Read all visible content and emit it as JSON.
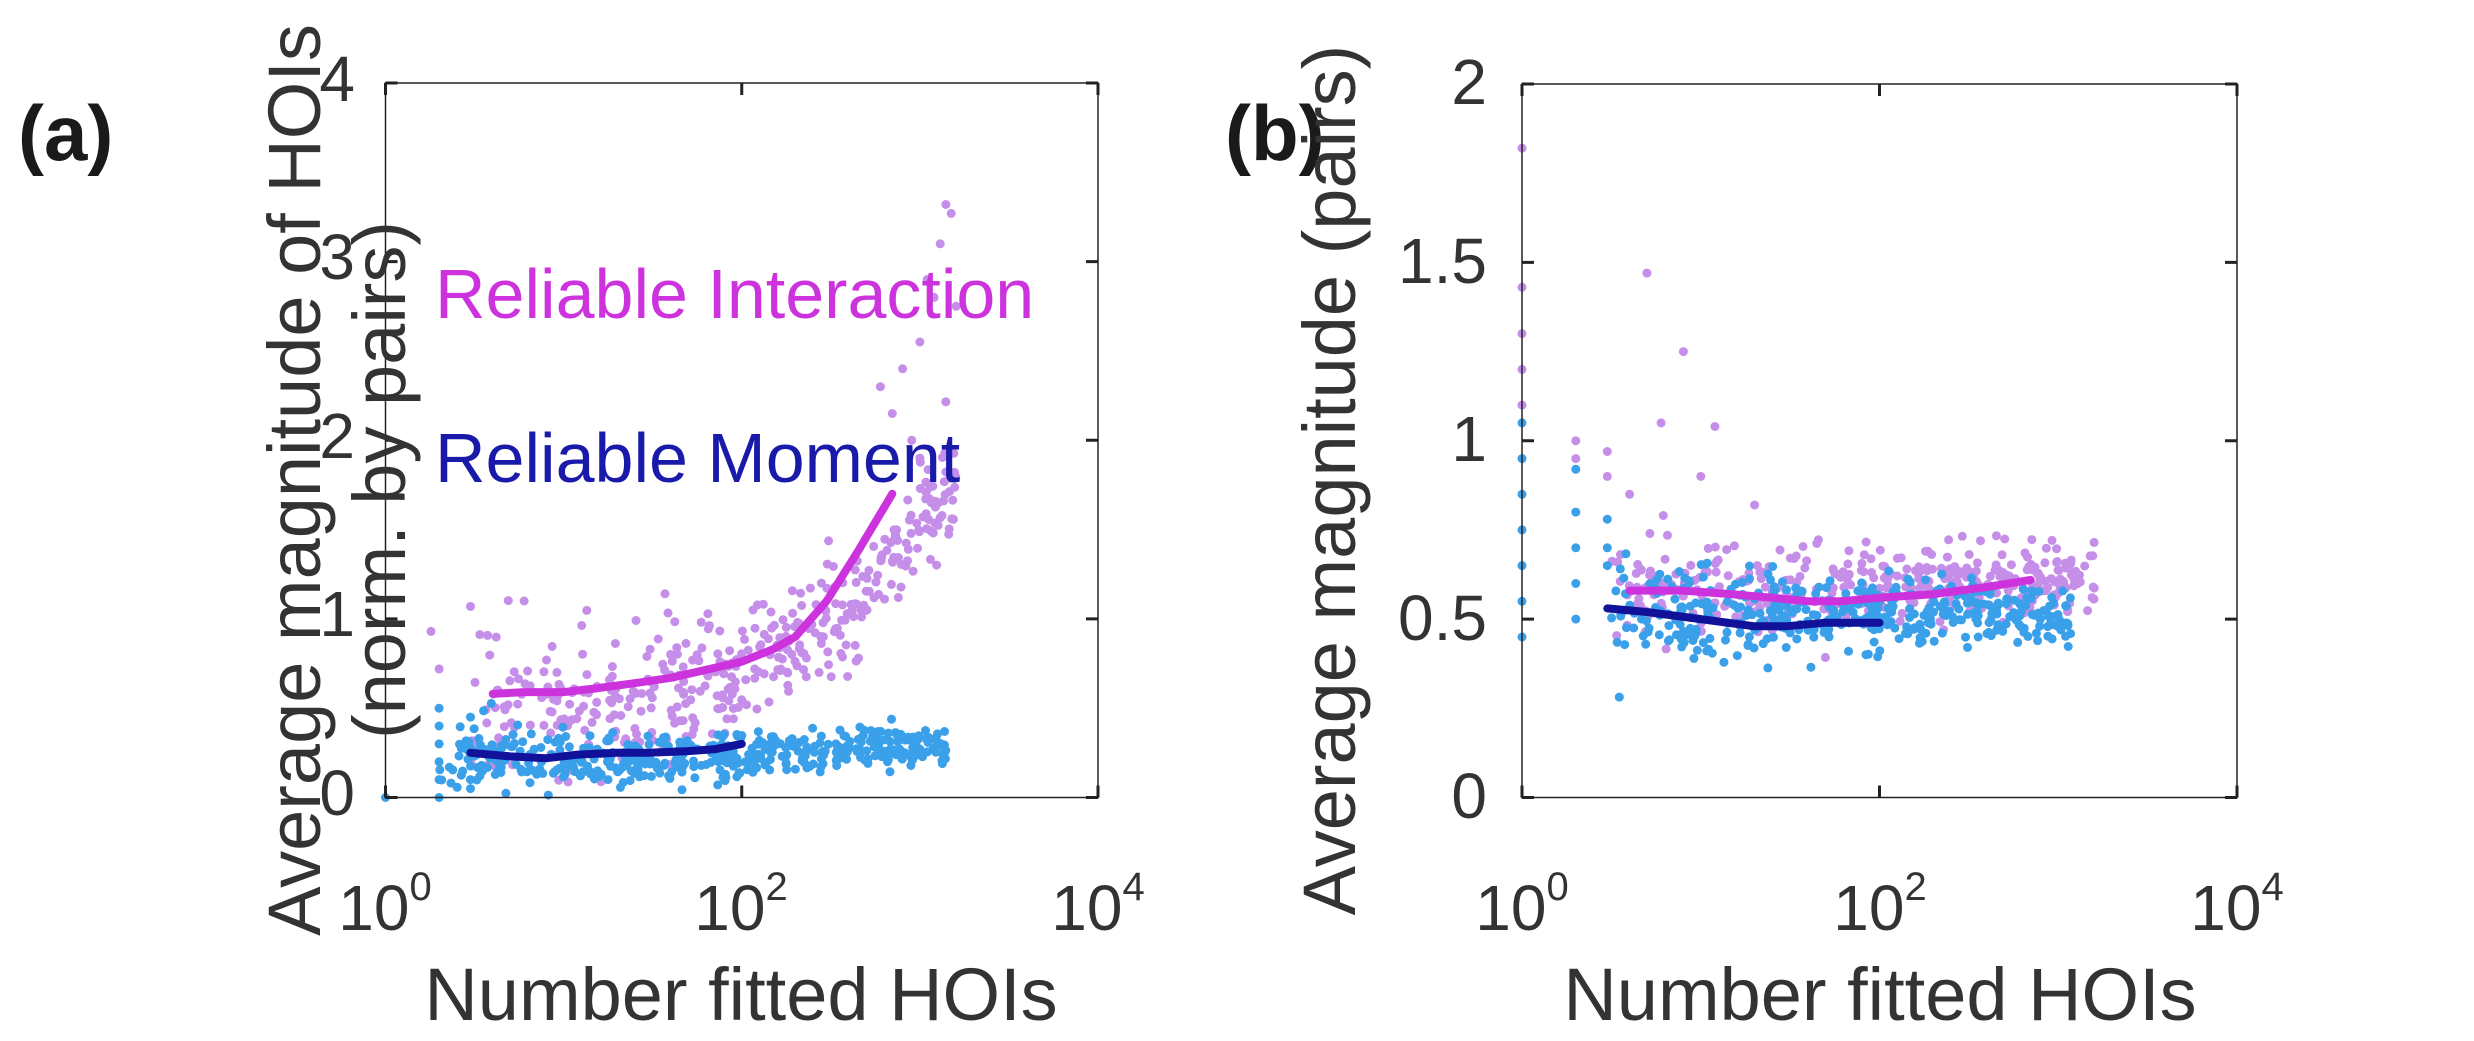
{
  "chart_data": [
    {
      "type": "scatter",
      "panel_label": "(a)",
      "xscale": "log",
      "xlim": [
        1,
        10000
      ],
      "ylim": [
        0,
        4
      ],
      "xticks": [
        {
          "base": "10",
          "exp": "0",
          "value": 1
        },
        {
          "base": "10",
          "exp": "2",
          "value": 100
        },
        {
          "base": "10",
          "exp": "4",
          "value": 10000
        }
      ],
      "yticks": [
        {
          "label": "0",
          "value": 0
        },
        {
          "label": "1",
          "value": 1
        },
        {
          "label": "2",
          "value": 2
        },
        {
          "label": "3",
          "value": 3
        },
        {
          "label": "4",
          "value": 4
        }
      ],
      "xlabel": "Number fitted HOIs",
      "ylabel_line1": "Average magnitude of HOIs",
      "ylabel_line2": "(norm. by pairs)",
      "legend": [
        {
          "label": "Reliable Interaction",
          "color": "#cc33dd"
        },
        {
          "label": "Reliable Moment",
          "color": "#1a1aaa"
        }
      ],
      "series": [
        {
          "name": "Reliable Interaction",
          "kind": "trend",
          "color": "#cc33dd",
          "x": [
            4,
            6,
            10,
            15,
            25,
            40,
            60,
            100,
            150,
            200,
            300,
            450,
            700
          ],
          "y": [
            0.58,
            0.59,
            0.59,
            0.61,
            0.64,
            0.67,
            0.71,
            0.76,
            0.83,
            0.9,
            1.1,
            1.38,
            1.7
          ]
        },
        {
          "name": "Reliable Moment",
          "kind": "trend",
          "color": "#11119a",
          "x": [
            3,
            5,
            8,
            12,
            20,
            30,
            50,
            70,
            100
          ],
          "y": [
            0.25,
            0.23,
            0.22,
            0.24,
            0.25,
            0.25,
            0.26,
            0.27,
            0.3
          ]
        },
        {
          "name": "Reliable Interaction samples",
          "kind": "cloud",
          "color": "#c58ee8",
          "x_range": [
            3,
            1600
          ],
          "y_start": 0.5,
          "y_end": 1.8,
          "spread": 0.22,
          "count": 420,
          "seed": 7,
          "extra_points": [
            [
              1.8,
              0.93
            ],
            [
              2,
              0.72
            ],
            [
              3,
              1.07
            ],
            [
              6,
              1.1
            ],
            [
              1400,
              3.32
            ],
            [
              1500,
              3.27
            ],
            [
              1300,
              3.1
            ],
            [
              1200,
              2.8
            ],
            [
              1600,
              2.75
            ],
            [
              1000,
              2.55
            ],
            [
              1100,
              2.9
            ],
            [
              800,
              2.4
            ],
            [
              600,
              2.3
            ],
            [
              700,
              2.15
            ],
            [
              900,
              2.0
            ],
            [
              1000,
              1.9
            ]
          ]
        },
        {
          "name": "Reliable Moment samples",
          "kind": "cloud",
          "color": "#3aa0ea",
          "x_range": [
            2,
            1400
          ],
          "y_start": 0.22,
          "y_end": 0.3,
          "spread": 0.09,
          "count": 460,
          "seed": 11,
          "extra_points": [
            [
              1,
              0.0
            ],
            [
              2,
              0.0
            ],
            [
              2,
              0.1
            ],
            [
              2,
              0.2
            ],
            [
              2,
              0.3
            ],
            [
              2,
              0.4
            ],
            [
              2,
              0.5
            ],
            [
              3,
              0.05
            ],
            [
              3,
              0.45
            ],
            [
              3,
              0.1
            ]
          ]
        }
      ]
    },
    {
      "type": "scatter",
      "panel_label": "(b)",
      "xscale": "log",
      "xlim": [
        1,
        10000
      ],
      "ylim": [
        0,
        2
      ],
      "xticks": [
        {
          "base": "10",
          "exp": "0",
          "value": 1
        },
        {
          "base": "10",
          "exp": "2",
          "value": 100
        },
        {
          "base": "10",
          "exp": "4",
          "value": 10000
        }
      ],
      "yticks": [
        {
          "label": "0",
          "value": 0
        },
        {
          "label": "0.5",
          "value": 0.5
        },
        {
          "label": "1",
          "value": 1
        },
        {
          "label": "1.5",
          "value": 1.5
        },
        {
          "label": "2",
          "value": 2
        }
      ],
      "xlabel": "Number fitted HOIs",
      "ylabel": "Average magnitude (pairs)",
      "series": [
        {
          "name": "Reliable Interaction",
          "kind": "trend",
          "color": "#cc33dd",
          "x": [
            4,
            8,
            15,
            25,
            40,
            60,
            100,
            200,
            400,
            700
          ],
          "y": [
            0.58,
            0.58,
            0.57,
            0.56,
            0.55,
            0.55,
            0.56,
            0.57,
            0.59,
            0.61
          ]
        },
        {
          "name": "Reliable Moment",
          "kind": "trend",
          "color": "#11119a",
          "x": [
            3,
            5,
            10,
            20,
            30,
            50,
            100
          ],
          "y": [
            0.53,
            0.52,
            0.5,
            0.48,
            0.48,
            0.49,
            0.49
          ]
        },
        {
          "name": "Reliable Interaction samples",
          "kind": "cloud",
          "color": "#c58ee8",
          "x_range": [
            3,
            1600
          ],
          "y_start": 0.6,
          "y_end": 0.62,
          "spread": 0.07,
          "count": 380,
          "seed": 23,
          "extra_points": [
            [
              1,
              1.82
            ],
            [
              1,
              1.43
            ],
            [
              1,
              1.3
            ],
            [
              1,
              1.2
            ],
            [
              1,
              1.1
            ],
            [
              2,
              1.0
            ],
            [
              2,
              0.95
            ],
            [
              3,
              0.97
            ],
            [
              3,
              0.9
            ],
            [
              5,
              1.47
            ],
            [
              8,
              1.25
            ],
            [
              12,
              1.04
            ],
            [
              6,
              1.05
            ],
            [
              4,
              0.85
            ],
            [
              10,
              0.9
            ],
            [
              20,
              0.82
            ]
          ]
        },
        {
          "name": "Reliable Moment samples",
          "kind": "cloud",
          "color": "#3aa0ea",
          "x_range": [
            3,
            1200
          ],
          "y_start": 0.52,
          "y_end": 0.5,
          "spread": 0.07,
          "count": 430,
          "seed": 31,
          "extra_points": [
            [
              1,
              0.45
            ],
            [
              1,
              0.55
            ],
            [
              1,
              0.65
            ],
            [
              1,
              0.75
            ],
            [
              1,
              0.85
            ],
            [
              1,
              0.95
            ],
            [
              1,
              1.05
            ],
            [
              2,
              0.5
            ],
            [
              2,
              0.6
            ],
            [
              2,
              0.7
            ],
            [
              2,
              0.8
            ],
            [
              2,
              0.92
            ],
            [
              3,
              0.78
            ],
            [
              3,
              0.7
            ],
            [
              3,
              0.65
            ]
          ]
        }
      ]
    }
  ]
}
